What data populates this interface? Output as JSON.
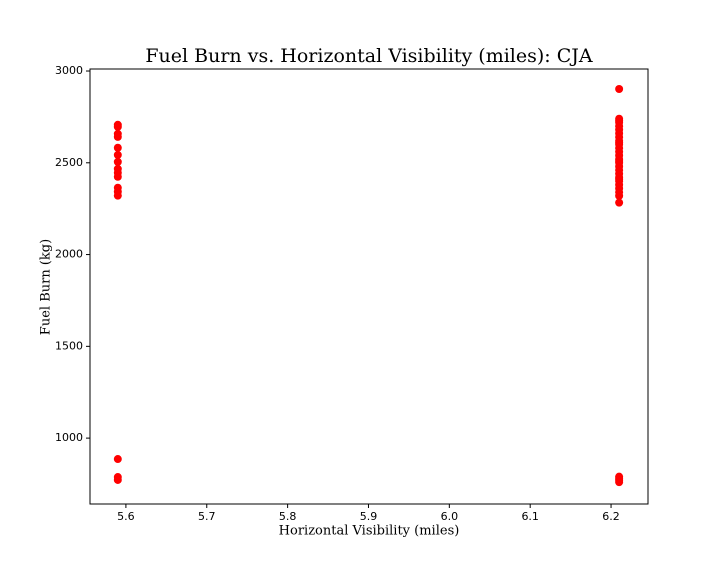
{
  "chart_data": {
    "type": "scatter",
    "title": "Fuel Burn vs. Horizontal Visibility (miles): CJA",
    "x_label": "Horizontal Visibility (miles)",
    "y_label": "Fuel Burn (kg)",
    "color": "#ff0000",
    "x": [
      5.59,
      5.59,
      5.59,
      5.59,
      5.59,
      5.59,
      5.59,
      5.59,
      5.59,
      5.59,
      5.59,
      5.59,
      5.59,
      5.59,
      5.59,
      5.59,
      6.21,
      6.21,
      6.21,
      6.21,
      6.21,
      6.21,
      6.21,
      6.21,
      6.21,
      6.21,
      6.21,
      6.21,
      6.21,
      6.21,
      6.21,
      6.21,
      6.21,
      6.21,
      6.21,
      6.21,
      6.21,
      6.21,
      6.21,
      6.21,
      6.21,
      6.21,
      6.21,
      6.21,
      6.21,
      6.21,
      6.21,
      6.21
    ],
    "y": [
      2707,
      2696,
      2658,
      2641,
      2582,
      2543,
      2505,
      2467,
      2446,
      2424,
      2364,
      2342,
      2321,
      886,
      788,
      772,
      2902,
      2740,
      2720,
      2700,
      2680,
      2660,
      2640,
      2620,
      2600,
      2580,
      2560,
      2540,
      2520,
      2500,
      2480,
      2460,
      2440,
      2420,
      2400,
      2380,
      2360,
      2340,
      2320,
      2283,
      790,
      780,
      770,
      760,
      2730,
      2610,
      2510,
      2410
    ],
    "xlim": [
      5.5556,
      6.2457
    ],
    "ylim": [
      641,
      3011
    ],
    "xticks": [
      5.6,
      5.7,
      5.8,
      5.9,
      {
        "value": 6.0,
        "label": "6.0"
      },
      6.1,
      6.2
    ],
    "yticks": [
      1000,
      1500,
      2000,
      2500,
      3000
    ],
    "grid": false
  }
}
